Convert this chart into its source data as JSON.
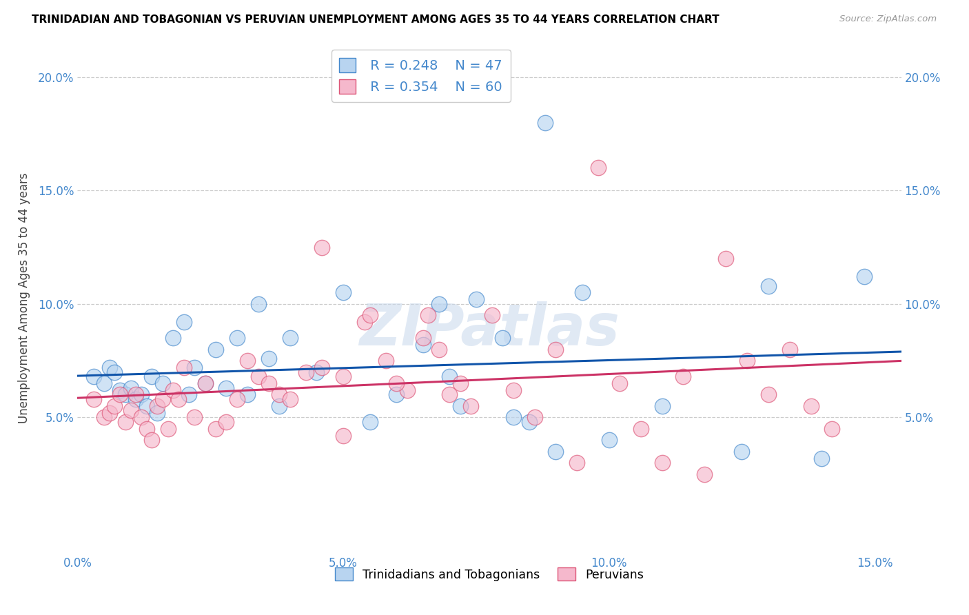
{
  "title": "TRINIDADIAN AND TOBAGONIAN VS PERUVIAN UNEMPLOYMENT AMONG AGES 35 TO 44 YEARS CORRELATION CHART",
  "source": "Source: ZipAtlas.com",
  "ylabel": "Unemployment Among Ages 35 to 44 years",
  "xlim": [
    0.0,
    0.155
  ],
  "ylim": [
    -0.01,
    0.215
  ],
  "xticks": [
    0.0,
    0.05,
    0.1,
    0.15
  ],
  "xticklabels": [
    "0.0%",
    "5.0%",
    "10.0%",
    "15.0%"
  ],
  "yticks": [
    0.05,
    0.1,
    0.15,
    0.2
  ],
  "yticklabels": [
    "5.0%",
    "10.0%",
    "15.0%",
    "20.0%"
  ],
  "legend1_R": "0.248",
  "legend1_N": "47",
  "legend2_R": "0.354",
  "legend2_N": "60",
  "blue_face": "#b8d4f0",
  "pink_face": "#f5b8cc",
  "blue_edge": "#4488cc",
  "pink_edge": "#dd5577",
  "blue_line": "#1155aa",
  "pink_line": "#cc3366",
  "tick_color": "#4488cc",
  "grid_color": "#cccccc",
  "watermark": "ZIPatlas",
  "blue_x": [
    0.003,
    0.005,
    0.006,
    0.007,
    0.008,
    0.009,
    0.01,
    0.011,
    0.012,
    0.013,
    0.014,
    0.015,
    0.016,
    0.018,
    0.02,
    0.021,
    0.022,
    0.024,
    0.026,
    0.028,
    0.03,
    0.032,
    0.034,
    0.036,
    0.038,
    0.04,
    0.045,
    0.05,
    0.055,
    0.06,
    0.065,
    0.068,
    0.07,
    0.072,
    0.075,
    0.08,
    0.082,
    0.085,
    0.088,
    0.09,
    0.095,
    0.1,
    0.11,
    0.125,
    0.13,
    0.14,
    0.148
  ],
  "blue_y": [
    0.068,
    0.065,
    0.072,
    0.07,
    0.062,
    0.06,
    0.063,
    0.058,
    0.06,
    0.055,
    0.068,
    0.052,
    0.065,
    0.085,
    0.092,
    0.06,
    0.072,
    0.065,
    0.08,
    0.063,
    0.085,
    0.06,
    0.1,
    0.076,
    0.055,
    0.085,
    0.07,
    0.105,
    0.048,
    0.06,
    0.082,
    0.1,
    0.068,
    0.055,
    0.102,
    0.085,
    0.05,
    0.048,
    0.18,
    0.035,
    0.105,
    0.04,
    0.055,
    0.035,
    0.108,
    0.032,
    0.112
  ],
  "pink_x": [
    0.003,
    0.005,
    0.006,
    0.007,
    0.008,
    0.009,
    0.01,
    0.011,
    0.012,
    0.013,
    0.014,
    0.015,
    0.016,
    0.017,
    0.018,
    0.019,
    0.02,
    0.022,
    0.024,
    0.026,
    0.028,
    0.03,
    0.032,
    0.034,
    0.036,
    0.038,
    0.04,
    0.043,
    0.046,
    0.05,
    0.054,
    0.058,
    0.062,
    0.066,
    0.07,
    0.074,
    0.078,
    0.082,
    0.086,
    0.09,
    0.094,
    0.098,
    0.102,
    0.106,
    0.11,
    0.114,
    0.118,
    0.122,
    0.126,
    0.13,
    0.134,
    0.046,
    0.05,
    0.055,
    0.06,
    0.065,
    0.068,
    0.072,
    0.138,
    0.142
  ],
  "pink_y": [
    0.058,
    0.05,
    0.052,
    0.055,
    0.06,
    0.048,
    0.053,
    0.06,
    0.05,
    0.045,
    0.04,
    0.055,
    0.058,
    0.045,
    0.062,
    0.058,
    0.072,
    0.05,
    0.065,
    0.045,
    0.048,
    0.058,
    0.075,
    0.068,
    0.065,
    0.06,
    0.058,
    0.07,
    0.072,
    0.068,
    0.092,
    0.075,
    0.062,
    0.095,
    0.06,
    0.055,
    0.095,
    0.062,
    0.05,
    0.08,
    0.03,
    0.16,
    0.065,
    0.045,
    0.03,
    0.068,
    0.025,
    0.12,
    0.075,
    0.06,
    0.08,
    0.125,
    0.042,
    0.095,
    0.065,
    0.085,
    0.08,
    0.065,
    0.055,
    0.045
  ]
}
